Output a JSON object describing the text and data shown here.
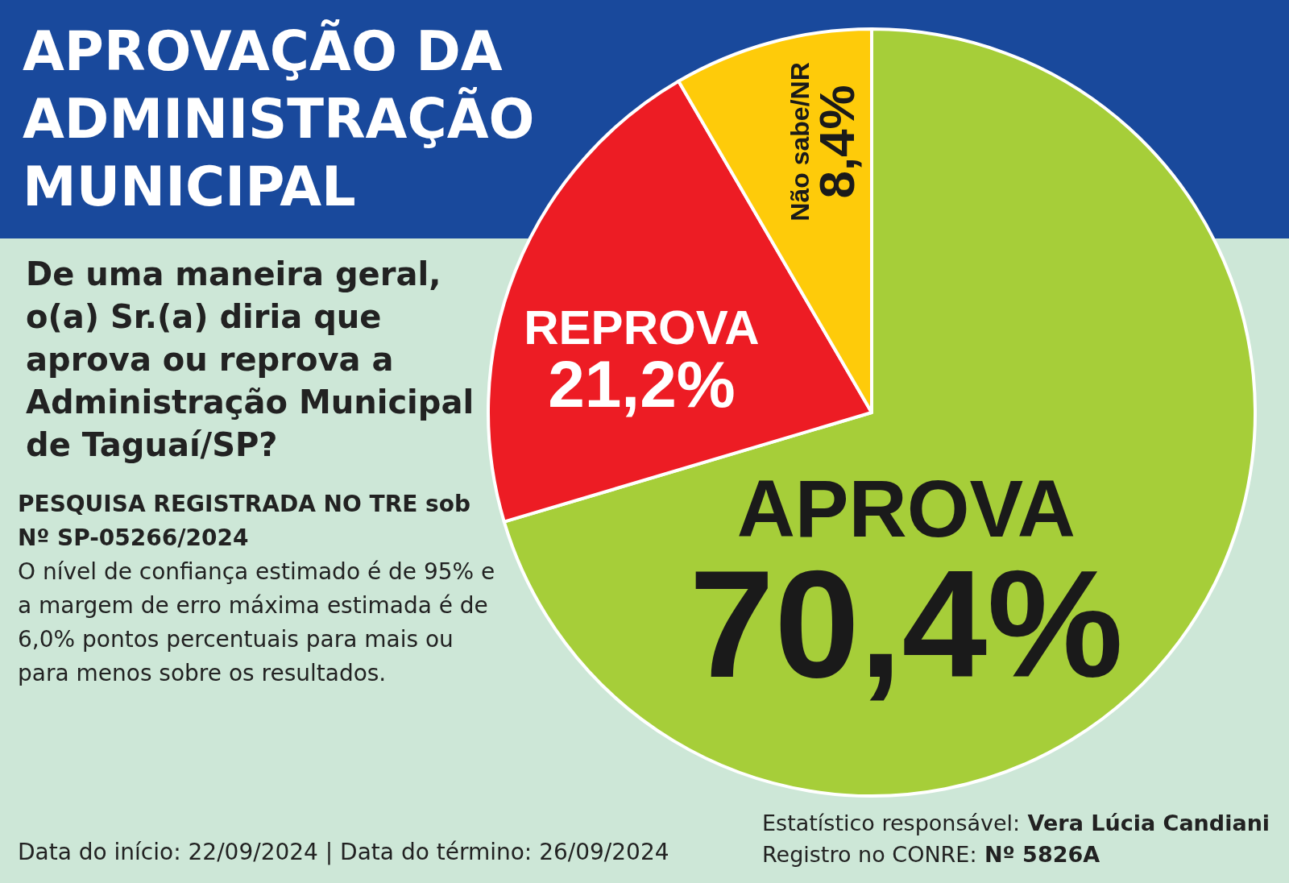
{
  "chart_data": {
    "type": "pie",
    "title": "APROVAÇÃO DA ADMINISTRAÇÃO MUNICIPAL",
    "subtitle": "De uma maneira geral, o(a) Sr.(a) diria que aprova ou reprova a Administração Municipal de Taguaí/SP?",
    "categories": [
      "APROVA",
      "REPROVA",
      "Não sabe/NR"
    ],
    "values": [
      70.4,
      21.2,
      8.4
    ],
    "colors": [
      "#a6ce39",
      "#ed1c24",
      "#fecb0a"
    ],
    "value_labels": [
      "70,4%",
      "21,2%",
      "8,4%"
    ],
    "annotations": [
      "PESQUISA REGISTRADA NO TRE sob Nº SP-05266/2024",
      "O nível de confiança estimado é de 95% e a margem de erro máxima estimada é de 6,0% pontos percentuais para mais ou para menos sobre os resultados.",
      "Data do início: 22/09/2024 | Data do término: 26/09/2024",
      "Estatístico responsável: Vera Lúcia Candiani",
      "Registro no CONRE: Nº 5826A"
    ]
  }
}
